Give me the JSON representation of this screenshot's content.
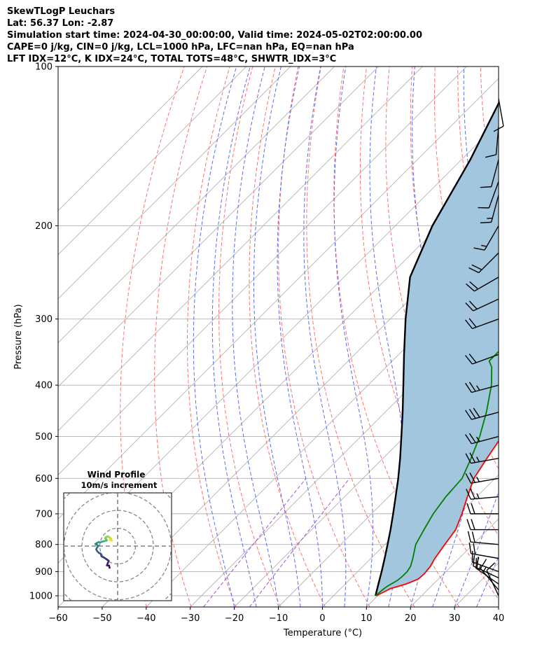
{
  "header": {
    "title": "SkewTLogP Leuchars",
    "location": "Lat: 56.37   Lon: -2.87",
    "times": "Simulation start time: 2024-04-30_00:00:00, Valid time: 2024-05-02T02:00:00.00",
    "indices1": "CAPE=0 j/kg, CIN=0 j/kg, LCL=1000 hPa, LFC=nan hPa, EQ=nan hPa",
    "indices2": "LFT IDX=12°C, K IDX=24°C, TOTAL TOTS=48°C, SHWTR_IDX=3°C"
  },
  "chart_data": [
    {
      "type": "skewt-logp",
      "xlabel": "Temperature (°C)",
      "ylabel": "Pressure (hPa)",
      "xlim": [
        -60,
        40
      ],
      "ylim": [
        1050,
        100
      ],
      "y_scale": "log",
      "grid": true,
      "x_ticks": [
        -60,
        -50,
        -40,
        -30,
        -20,
        -10,
        0,
        10,
        20,
        30,
        40
      ],
      "y_ticks": [
        1000,
        900,
        800,
        700,
        600,
        500,
        400,
        300,
        200,
        100
      ],
      "colors": {
        "temperature": "#ff0000",
        "dewpoint": "#008000",
        "parcel": "#000000",
        "shade": "#a3c6df",
        "dry_adiabats": "#ff7070",
        "moist_adiabats": "#5a6cf2",
        "mixing_ratio": "#a64ed1",
        "isotherms": "#b3b3b3"
      },
      "series": [
        {
          "name": "temperature",
          "points": [
            [
              1000,
              9.7
            ],
            [
              985,
              10.5
            ],
            [
              970,
              11.2
            ],
            [
              950,
              13.8
            ],
            [
              930,
              15.4
            ],
            [
              910,
              15.6
            ],
            [
              880,
              15.3
            ],
            [
              850,
              14.5
            ],
            [
              800,
              13.6
            ],
            [
              750,
              12.7
            ],
            [
              700,
              10.5
            ],
            [
              650,
              7.9
            ],
            [
              600,
              5.2
            ],
            [
              550,
              3.6
            ],
            [
              500,
              2.0
            ],
            [
              450,
              0.0
            ],
            [
              420,
              -1.9
            ],
            [
              400,
              -3.0
            ],
            [
              350,
              -7.0
            ],
            [
              300,
              -12.0
            ],
            [
              280,
              -14.5
            ],
            [
              250,
              -18.0
            ],
            [
              220,
              -22.0
            ],
            [
              215,
              -23.5
            ],
            [
              210,
              -22.0
            ],
            [
              205,
              -21.0
            ],
            [
              200,
              -20.5
            ],
            [
              190,
              -18.5
            ],
            [
              180,
              -17.0
            ],
            [
              170,
              -14.5
            ],
            [
              160,
              -12.0
            ],
            [
              150,
              -11.0
            ],
            [
              140,
              -11.0
            ],
            [
              130,
              -11.5
            ],
            [
              120,
              -12.5
            ],
            [
              110,
              -14.5
            ],
            [
              100,
              -16.5
            ]
          ]
        },
        {
          "name": "dewpoint",
          "points": [
            [
              1000,
              9.5
            ],
            [
              970,
              9.8
            ],
            [
              960,
              10.0
            ],
            [
              935,
              11.0
            ],
            [
              920,
              11.2
            ],
            [
              900,
              11.2
            ],
            [
              880,
              10.8
            ],
            [
              850,
              9.5
            ],
            [
              800,
              7.0
            ],
            [
              750,
              5.5
            ],
            [
              700,
              4.0
            ],
            [
              650,
              3.0
            ],
            [
              600,
              2.5
            ],
            [
              550,
              0.0
            ],
            [
              500,
              -3.0
            ],
            [
              450,
              -7.0
            ],
            [
              400,
              -12.0
            ],
            [
              370,
              -16.0
            ],
            [
              360,
              -18.0
            ],
            [
              330,
              -18.0
            ],
            [
              300,
              -18.5
            ],
            [
              280,
              -21.0
            ],
            [
              260,
              -23.0
            ],
            [
              245,
              -25.0
            ],
            [
              230,
              -27.0
            ],
            [
              215,
              -28.5
            ],
            [
              210,
              -27.0
            ],
            [
              205,
              -25.5
            ],
            [
              200,
              -24.0
            ],
            [
              190,
              -23.5
            ],
            [
              180,
              -25.0
            ],
            [
              170,
              -29.0
            ],
            [
              160,
              -33.0
            ],
            [
              150,
              -32.5
            ],
            [
              140,
              -29.5
            ],
            [
              130,
              -26.0
            ],
            [
              120,
              -22.5
            ],
            [
              110,
              -20.0
            ],
            [
              100,
              -18.0
            ]
          ]
        },
        {
          "name": "parcel",
          "points": [
            [
              1000,
              9.5
            ],
            [
              950,
              7.5
            ],
            [
              900,
              5.4
            ],
            [
              850,
              3.1
            ],
            [
              800,
              0.6
            ],
            [
              750,
              -2.1
            ],
            [
              700,
              -5.1
            ],
            [
              650,
              -8.4
            ],
            [
              600,
              -12.0
            ],
            [
              550,
              -16.1
            ],
            [
              500,
              -20.8
            ],
            [
              450,
              -26.0
            ],
            [
              400,
              -32.0
            ],
            [
              350,
              -38.8
            ],
            [
              300,
              -46.5
            ],
            [
              250,
              -55.0
            ],
            [
              200,
              -61.6
            ],
            [
              150,
              -68.0
            ],
            [
              100,
              -78.5
            ]
          ]
        }
      ]
    },
    {
      "type": "hodograph",
      "title": "Wind Profile",
      "subtitle": "10m/s increment",
      "ring_step_ms": 10,
      "series": [
        {
          "name": "wind",
          "uv": [
            [
              -4.5,
              -12.2
            ],
            [
              -4.8,
              -11.0
            ],
            [
              -6.0,
              -10.8
            ],
            [
              -5.5,
              -9.5
            ],
            [
              -5.0,
              -8.2
            ],
            [
              -6.0,
              -7.5
            ],
            [
              -7.5,
              -6.5
            ],
            [
              -9.0,
              -5.8
            ],
            [
              -9.5,
              -4.3
            ],
            [
              -10.5,
              -3.8
            ],
            [
              -11.5,
              -2.8
            ],
            [
              -12.0,
              -1.8
            ],
            [
              -11.5,
              -0.8
            ],
            [
              -10.8,
              0.2
            ],
            [
              -11.8,
              0.8
            ],
            [
              -12.5,
              1.2
            ],
            [
              -11.5,
              1.8
            ],
            [
              -10.5,
              2.3
            ],
            [
              -10.0,
              2.0
            ],
            [
              -8.5,
              2.5
            ],
            [
              -7.5,
              2.8
            ],
            [
              -6.5,
              3.0
            ],
            [
              -6.0,
              3.2
            ],
            [
              -6.5,
              4.0
            ],
            [
              -7.0,
              4.5
            ],
            [
              -6.5,
              5.0
            ],
            [
              -5.5,
              5.5
            ],
            [
              -4.8,
              5.0
            ],
            [
              -4.0,
              4.5
            ],
            [
              -3.5,
              4.0
            ],
            [
              -4.5,
              3.5
            ],
            [
              -4.0,
              3.0
            ],
            [
              -3.0,
              3.0
            ]
          ]
        }
      ]
    },
    {
      "type": "wind-barbs",
      "units": "kt",
      "barbs": [
        [
          1000,
          335,
          12
        ],
        [
          975,
          320,
          14
        ],
        [
          950,
          305,
          16
        ],
        [
          925,
          295,
          18
        ],
        [
          900,
          290,
          15
        ],
        [
          850,
          280,
          20
        ],
        [
          800,
          275,
          20
        ],
        [
          750,
          270,
          20
        ],
        [
          700,
          270,
          20
        ],
        [
          650,
          265,
          25
        ],
        [
          600,
          260,
          25
        ],
        [
          550,
          260,
          25
        ],
        [
          500,
          255,
          25
        ],
        [
          450,
          255,
          30
        ],
        [
          400,
          255,
          25
        ],
        [
          350,
          250,
          20
        ],
        [
          300,
          250,
          20
        ],
        [
          275,
          245,
          20
        ],
        [
          250,
          240,
          20
        ],
        [
          225,
          225,
          20
        ],
        [
          200,
          210,
          15
        ],
        [
          175,
          195,
          15
        ],
        [
          165,
          200,
          10
        ],
        [
          150,
          195,
          10
        ],
        [
          130,
          185,
          10
        ],
        [
          115,
          170,
          10
        ]
      ]
    }
  ]
}
